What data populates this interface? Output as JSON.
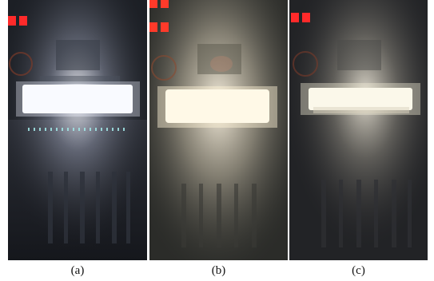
{
  "panels": [
    {
      "id": "a",
      "caption": "(a)"
    },
    {
      "id": "b",
      "caption": "(b)"
    },
    {
      "id": "c",
      "caption": "(c)"
    }
  ]
}
